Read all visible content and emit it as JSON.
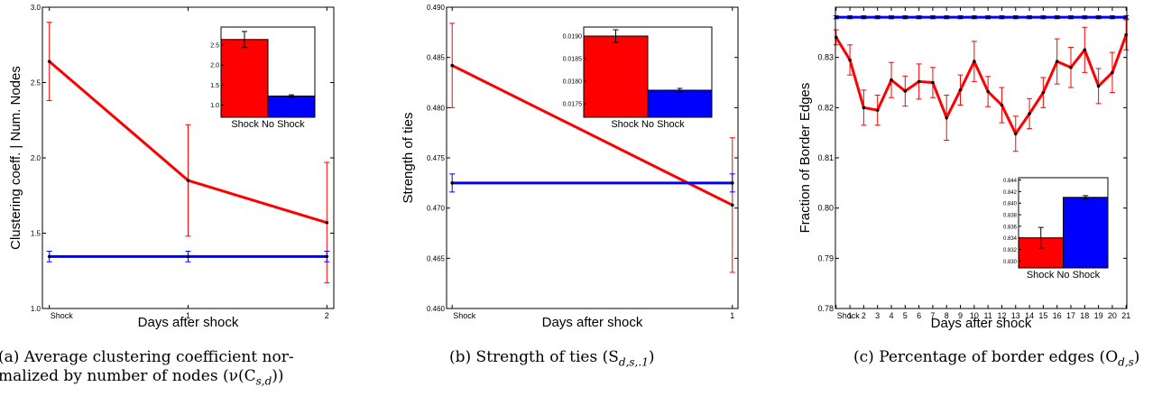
{
  "chart_data": [
    {
      "type": "line",
      "caption_line1": "(a) Average clustering coefficient nor-",
      "caption_line2": "malized by number of nodes (ν(C",
      "caption_sub": "s,d",
      "caption_tail": "))",
      "xlabel": "Days after shock",
      "ylabel": "Clustering coeff. | Num. Nodes",
      "x": [
        0,
        1,
        2
      ],
      "xtick_labels": [
        "Shock",
        "1",
        "2"
      ],
      "xlim": [
        -0.05,
        2.05
      ],
      "ylim": [
        1.0,
        3.0
      ],
      "yticks": [
        1.0,
        1.5,
        2.0,
        2.5,
        3.0
      ],
      "ytick_labels": [
        "1.0",
        "1.5",
        "2.0",
        "2.5",
        "3.0"
      ],
      "series": [
        {
          "color": "#ff0000",
          "values": [
            2.64,
            1.85,
            1.57
          ],
          "err": [
            0.26,
            0.37,
            0.4
          ]
        },
        {
          "color": "#0000ff",
          "values": [
            1.345,
            1.345,
            1.345
          ],
          "err": [
            0.035,
            0.035,
            0.035
          ]
        }
      ],
      "inset": {
        "categories": [
          "Shock",
          "No Shock"
        ],
        "category_label": "Shock No Shock",
        "values": [
          2.64,
          1.23
        ],
        "err": [
          0.2,
          0.03
        ],
        "colors": [
          "#ff0000",
          "#0000ff"
        ],
        "ylim": [
          0.7,
          2.95
        ],
        "yticks": [
          1.0,
          1.5,
          2.0,
          2.5
        ],
        "ytick_labels": [
          "1.0",
          "1.5",
          "2.0",
          "2.5"
        ]
      }
    },
    {
      "type": "line",
      "caption_line1": "(b) Strength of ties (S",
      "caption_sub": "d,s,.1",
      "caption_tail": ")",
      "xlabel": "Days after shock",
      "ylabel": "Strength of ties",
      "x": [
        0,
        1
      ],
      "xtick_labels": [
        "Shock",
        "1"
      ],
      "xlim": [
        -0.02,
        1.02
      ],
      "ylim": [
        0.46,
        0.49
      ],
      "yticks": [
        0.46,
        0.465,
        0.47,
        0.475,
        0.48,
        0.485,
        0.49
      ],
      "ytick_labels": [
        "0.460",
        "0.465",
        "0.470",
        "0.475",
        "0.480",
        "0.485",
        "0.490"
      ],
      "series": [
        {
          "color": "#ff0000",
          "values": [
            0.4842,
            0.4703
          ],
          "err": [
            0.0042,
            0.0067
          ]
        },
        {
          "color": "#0000ff",
          "values": [
            0.4725,
            0.4725
          ],
          "err": [
            0.0009,
            0.0009
          ]
        }
      ],
      "inset": {
        "categories": [
          "Shock",
          "No Shock"
        ],
        "category_label": "Shock No Shock",
        "values": [
          0.019,
          0.0178
        ],
        "err": [
          0.00014,
          4e-05
        ],
        "colors": [
          "#ff0000",
          "#0000ff"
        ],
        "ylim": [
          0.0172,
          0.0192
        ],
        "yticks": [
          0.0175,
          0.018,
          0.0185,
          0.019
        ],
        "ytick_labels": [
          "0.0175",
          "0.0180",
          "0.0185",
          "0.0190"
        ]
      }
    },
    {
      "type": "line",
      "caption_line1": "(c) Percentage of border edges (O",
      "caption_sub": "d,s",
      "caption_tail": ")",
      "xlabel": "Days after shock",
      "ylabel": "Fraction of Border Edges",
      "x": [
        0,
        1,
        2,
        3,
        4,
        5,
        6,
        7,
        8,
        9,
        10,
        11,
        12,
        13,
        14,
        15,
        16,
        17,
        18,
        19,
        20,
        21
      ],
      "xtick_labels": [
        "Shock",
        "1",
        "2",
        "3",
        "4",
        "5",
        "6",
        "7",
        "8",
        "9",
        "10",
        "11",
        "12",
        "13",
        "14",
        "15",
        "16",
        "17",
        "18",
        "19",
        "20",
        "21"
      ],
      "xlim": [
        -0.05,
        21.05
      ],
      "ylim": [
        0.78,
        0.84
      ],
      "yticks": [
        0.78,
        0.79,
        0.8,
        0.81,
        0.82,
        0.83
      ],
      "ytick_labels": [
        "0.78",
        "0.79",
        "0.80",
        "0.81",
        "0.82",
        "0.83"
      ],
      "series": [
        {
          "color": "#ff0000",
          "values": [
            0.834,
            0.8295,
            0.82,
            0.8195,
            0.8255,
            0.8233,
            0.8252,
            0.825,
            0.818,
            0.8235,
            0.8292,
            0.8232,
            0.8205,
            0.8148,
            0.8188,
            0.823,
            0.8292,
            0.828,
            0.8315,
            0.8243,
            0.827,
            0.8345
          ],
          "err": [
            0.0015,
            0.003,
            0.0035,
            0.003,
            0.0035,
            0.003,
            0.0035,
            0.003,
            0.0045,
            0.003,
            0.004,
            0.003,
            0.0035,
            0.0035,
            0.003,
            0.003,
            0.0045,
            0.004,
            0.0045,
            0.0035,
            0.004,
            0.003
          ]
        },
        {
          "color": "#0000ff",
          "values": [
            0.838,
            0.838,
            0.838,
            0.838,
            0.838,
            0.838,
            0.838,
            0.838,
            0.838,
            0.838,
            0.838,
            0.838,
            0.838,
            0.838,
            0.838,
            0.838,
            0.838,
            0.838,
            0.838,
            0.838,
            0.838,
            0.838
          ],
          "err": [
            0.0003,
            0.0003,
            0.0003,
            0.0003,
            0.0003,
            0.0003,
            0.0003,
            0.0003,
            0.0003,
            0.0003,
            0.0003,
            0.0003,
            0.0003,
            0.0003,
            0.0003,
            0.0003,
            0.0003,
            0.0003,
            0.0003,
            0.0003,
            0.0003,
            0.0003
          ]
        }
      ],
      "inset": {
        "categories": [
          "Shock",
          "No Shock"
        ],
        "category_label": "Shock No Shock",
        "values": [
          0.834,
          0.841
        ],
        "err": [
          0.0018,
          0.0003
        ],
        "colors": [
          "#ff0000",
          "#0000ff"
        ],
        "ylim": [
          0.8288,
          0.8444
        ],
        "yticks": [
          0.83,
          0.832,
          0.834,
          0.836,
          0.838,
          0.84,
          0.842,
          0.844
        ],
        "ytick_labels": [
          "0.830",
          "0.832",
          "0.834",
          "0.836",
          "0.838",
          "0.840",
          "0.842",
          "0.844"
        ]
      }
    }
  ]
}
